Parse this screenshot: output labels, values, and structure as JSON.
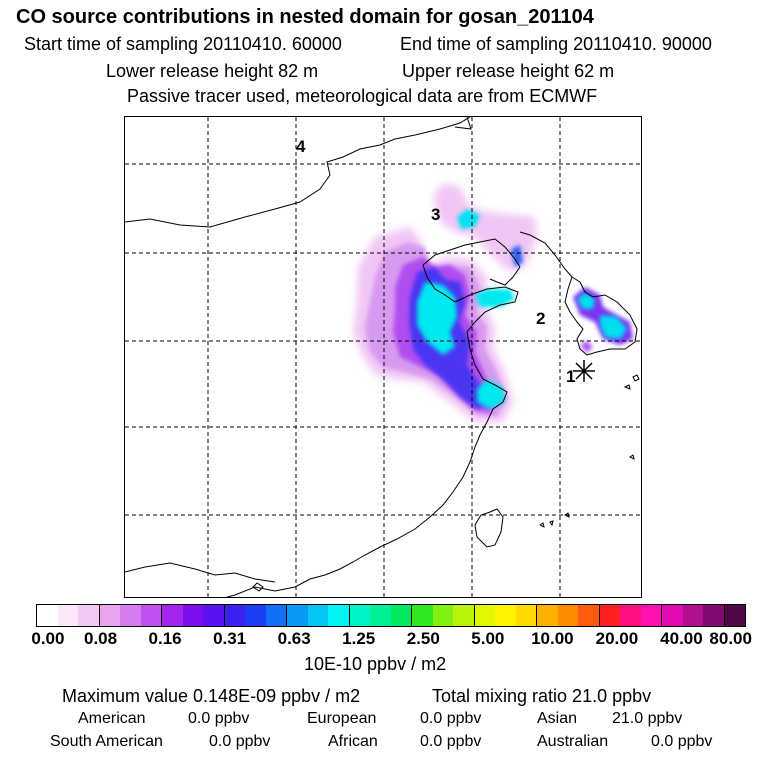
{
  "header": {
    "title": "CO  source contributions in nested domain for gosan_201104",
    "start_time": "Start time of sampling 20110410. 60000",
    "end_time": "End time of sampling 20110410. 90000",
    "lower_release": "Lower release height   82 m",
    "upper_release": "Upper release height   62 m",
    "tracer_note": "Passive tracer used, meteorological data are from ECMWF"
  },
  "map": {
    "region_labels": [
      "4",
      "3",
      "2",
      "1"
    ],
    "receptor_marker": "gosan-receptor-star"
  },
  "colorbar": {
    "colors": [
      "#ffffff",
      "#fbe8fb",
      "#f3c8f4",
      "#e9a4f0",
      "#d67cf0",
      "#c150f0",
      "#a226ee",
      "#7d0ef0",
      "#5a12f0",
      "#3a23f2",
      "#1e3ef4",
      "#1070f6",
      "#0b98f7",
      "#05c4f8",
      "#00f4f4",
      "#00f4c8",
      "#00f098",
      "#00e860",
      "#30e820",
      "#80f010",
      "#b8f408",
      "#e0f800",
      "#fff400",
      "#ffd800",
      "#ffb000",
      "#ff8c00",
      "#ff5a10",
      "#ff2020",
      "#ff1080",
      "#ff10b0",
      "#e00cb0",
      "#b01090",
      "#800a70",
      "#500848"
    ],
    "tick_labels": [
      "0.00",
      "0.08",
      "0.16",
      "0.31",
      "0.63",
      "1.25",
      "2.50",
      "5.00",
      "10.00",
      "20.00",
      "40.00",
      "80.00"
    ],
    "unit_label": "10E-10 ppbv / m2"
  },
  "summary": {
    "max_value": "Maximum value  0.148E-09 ppbv / m2",
    "total_mixing": "Total mixing ratio       21.0 ppbv",
    "american_label": "American",
    "american_value": "0.0 ppbv",
    "european_label": "European",
    "european_value": "0.0 ppbv",
    "asian_label": "Asian",
    "asian_value": "21.0 ppbv",
    "south_american_label": "South American",
    "south_american_value": "0.0 ppbv",
    "african_label": "African",
    "african_value": "0.0 ppbv",
    "australian_label": "Australian",
    "australian_value": "0.0 ppbv"
  }
}
